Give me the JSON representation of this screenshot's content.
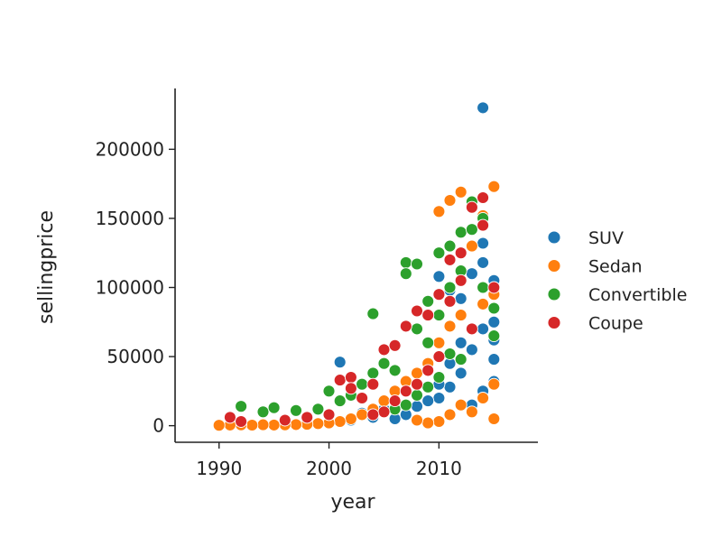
{
  "chart_data": {
    "type": "scatter",
    "title": "",
    "xlabel": "year",
    "ylabel": "sellingprice",
    "xlim": [
      1986,
      2019
    ],
    "ylim": [
      -12000,
      244000
    ],
    "xticks": [
      1990,
      2000,
      2010
    ],
    "xtick_labels": [
      "1990",
      "2000",
      "2010"
    ],
    "yticks": [
      0,
      50000,
      100000,
      150000,
      200000
    ],
    "ytick_labels": [
      "0",
      "50000",
      "100000",
      "150000",
      "200000"
    ],
    "grid": false,
    "legend_position": "right",
    "series": [
      {
        "name": "SUV",
        "color": "#1f77b4",
        "points": [
          [
            2014,
            230000
          ],
          [
            2001,
            46000
          ],
          [
            2010,
            108000
          ],
          [
            2011,
            98000
          ],
          [
            2012,
            92000
          ],
          [
            2013,
            110000
          ],
          [
            2014,
            132000
          ],
          [
            2014,
            118000
          ],
          [
            2015,
            75000
          ],
          [
            2015,
            62000
          ],
          [
            2015,
            48000
          ],
          [
            2013,
            55000
          ],
          [
            2012,
            38000
          ],
          [
            2011,
            28000
          ],
          [
            2010,
            20000
          ],
          [
            2009,
            18000
          ],
          [
            2008,
            14000
          ],
          [
            2007,
            8000
          ],
          [
            2006,
            5000
          ],
          [
            2005,
            12000
          ],
          [
            2004,
            6000
          ],
          [
            2003,
            9000
          ],
          [
            2002,
            4000
          ],
          [
            2014,
            25000
          ],
          [
            2015,
            32000
          ],
          [
            2013,
            15000
          ],
          [
            2014,
            70000
          ],
          [
            2015,
            105000
          ],
          [
            2012,
            60000
          ],
          [
            2011,
            45000
          ],
          [
            2010,
            30000
          ],
          [
            1998,
            3000
          ]
        ]
      },
      {
        "name": "Sedan",
        "color": "#ff7f0e",
        "points": [
          [
            2015,
            173000
          ],
          [
            2012,
            169000
          ],
          [
            2011,
            163000
          ],
          [
            2010,
            155000
          ],
          [
            2013,
            160000
          ],
          [
            2014,
            152000
          ],
          [
            2011,
            120000
          ],
          [
            2013,
            130000
          ],
          [
            2015,
            95000
          ],
          [
            2014,
            88000
          ],
          [
            2012,
            80000
          ],
          [
            2011,
            72000
          ],
          [
            2010,
            60000
          ],
          [
            2009,
            45000
          ],
          [
            2008,
            38000
          ],
          [
            2007,
            32000
          ],
          [
            2006,
            25000
          ],
          [
            2005,
            18000
          ],
          [
            2004,
            12000
          ],
          [
            2003,
            8000
          ],
          [
            2002,
            5000
          ],
          [
            2001,
            3000
          ],
          [
            2000,
            2000
          ],
          [
            1999,
            1500
          ],
          [
            1998,
            1000
          ],
          [
            1997,
            800
          ],
          [
            1996,
            600
          ],
          [
            1995,
            500
          ],
          [
            1994,
            700
          ],
          [
            1993,
            400
          ],
          [
            1992,
            600
          ],
          [
            1991,
            500
          ],
          [
            1990,
            300
          ],
          [
            2015,
            30000
          ],
          [
            2014,
            20000
          ],
          [
            2013,
            10000
          ],
          [
            2015,
            5000
          ],
          [
            2012,
            15000
          ],
          [
            2011,
            8000
          ],
          [
            2010,
            3000
          ],
          [
            2009,
            2000
          ],
          [
            2008,
            4000
          ]
        ]
      },
      {
        "name": "Convertible",
        "color": "#2ca02c",
        "points": [
          [
            1992,
            14000
          ],
          [
            1994,
            10000
          ],
          [
            1995,
            13000
          ],
          [
            1997,
            11000
          ],
          [
            1999,
            12000
          ],
          [
            2000,
            25000
          ],
          [
            2001,
            18000
          ],
          [
            2002,
            22000
          ],
          [
            2003,
            30000
          ],
          [
            2004,
            81000
          ],
          [
            2004,
            38000
          ],
          [
            2005,
            45000
          ],
          [
            2006,
            40000
          ],
          [
            2007,
            118000
          ],
          [
            2007,
            110000
          ],
          [
            2008,
            117000
          ],
          [
            2008,
            70000
          ],
          [
            2009,
            90000
          ],
          [
            2009,
            60000
          ],
          [
            2010,
            125000
          ],
          [
            2010,
            80000
          ],
          [
            2011,
            100000
          ],
          [
            2011,
            130000
          ],
          [
            2012,
            140000
          ],
          [
            2012,
            112000
          ],
          [
            2013,
            162000
          ],
          [
            2013,
            142000
          ],
          [
            2014,
            100000
          ],
          [
            2014,
            150000
          ],
          [
            2015,
            85000
          ],
          [
            2015,
            65000
          ],
          [
            2012,
            48000
          ],
          [
            2011,
            52000
          ],
          [
            2010,
            35000
          ],
          [
            2009,
            28000
          ],
          [
            2008,
            22000
          ],
          [
            2007,
            15000
          ],
          [
            2006,
            12000
          ]
        ]
      },
      {
        "name": "Coupe",
        "color": "#d62728",
        "points": [
          [
            1991,
            6000
          ],
          [
            1992,
            3000
          ],
          [
            1996,
            4000
          ],
          [
            1998,
            6000
          ],
          [
            2000,
            8000
          ],
          [
            2001,
            33000
          ],
          [
            2002,
            35000
          ],
          [
            2002,
            27000
          ],
          [
            2003,
            20000
          ],
          [
            2004,
            30000
          ],
          [
            2005,
            55000
          ],
          [
            2006,
            58000
          ],
          [
            2007,
            72000
          ],
          [
            2008,
            83000
          ],
          [
            2009,
            80000
          ],
          [
            2010,
            95000
          ],
          [
            2011,
            120000
          ],
          [
            2012,
            105000
          ],
          [
            2013,
            158000
          ],
          [
            2014,
            165000
          ],
          [
            2014,
            145000
          ],
          [
            2015,
            100000
          ],
          [
            2012,
            125000
          ],
          [
            2011,
            90000
          ],
          [
            2013,
            70000
          ],
          [
            2010,
            50000
          ],
          [
            2009,
            40000
          ],
          [
            2008,
            30000
          ],
          [
            2007,
            25000
          ],
          [
            2006,
            18000
          ],
          [
            2005,
            10000
          ],
          [
            2004,
            8000
          ]
        ]
      }
    ]
  }
}
